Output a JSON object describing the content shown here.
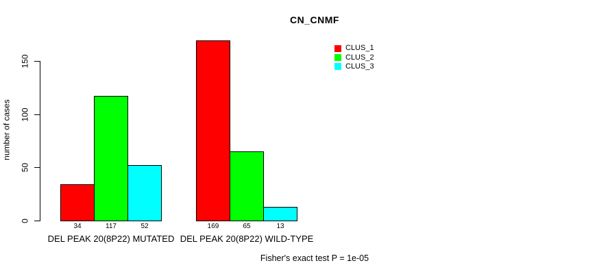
{
  "title": "CN_CNMF",
  "footer": "Fisher's exact test P = 1e-05",
  "chart_data": {
    "type": "bar",
    "grouped": true,
    "title": "CN_CNMF",
    "ylabel": "number of cases",
    "xlabel": "",
    "ylim": [
      0,
      150
    ],
    "yticks": [
      0,
      50,
      100,
      150
    ],
    "grid": false,
    "bar_value_labels_shown": true,
    "legend_position": "top-right",
    "categories": [
      "DEL PEAK 20(8P22) MUTATED",
      "DEL PEAK 20(8P22) WILD-TYPE"
    ],
    "series": [
      {
        "name": "CLUS_1",
        "color": "#ff0000",
        "values": [
          34,
          169
        ]
      },
      {
        "name": "CLUS_2",
        "color": "#00ff00",
        "values": [
          117,
          65
        ]
      },
      {
        "name": "CLUS_3",
        "color": "#00ffff",
        "values": [
          52,
          13
        ]
      }
    ],
    "annotation": "Fisher's exact test P = 1e-05",
    "colors": {
      "bar_border": "#000000",
      "axis": "#000000",
      "text": "#000000",
      "background": "#ffffff"
    }
  }
}
